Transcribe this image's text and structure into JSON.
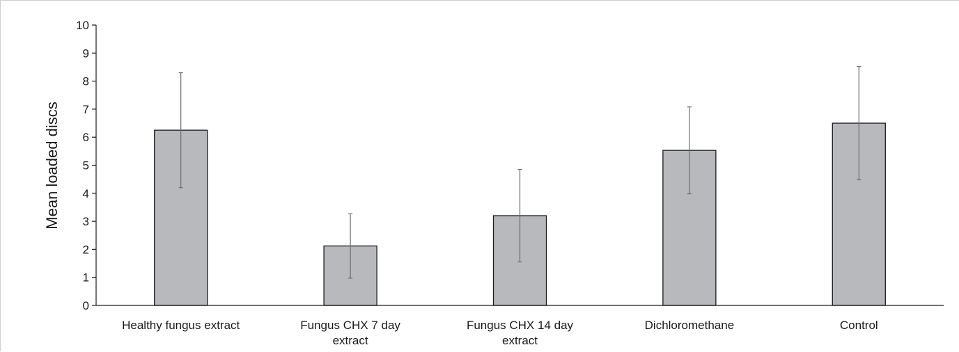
{
  "chart_data": {
    "type": "bar",
    "title": "",
    "xlabel": "",
    "ylabel": "Mean loaded discs",
    "ylim": [
      0,
      10
    ],
    "yticks": [
      0,
      1,
      2,
      3,
      4,
      5,
      6,
      7,
      8,
      9,
      10
    ],
    "grid": false,
    "legend": "none",
    "categories": [
      [
        "Healthy fungus extract"
      ],
      [
        "Fungus CHX 7 day",
        "extract"
      ],
      [
        "Fungus CHX 14 day",
        "extract"
      ],
      [
        "Dichloromethane"
      ],
      [
        "Control"
      ]
    ],
    "series": [
      {
        "values": [
          6.25,
          2.12,
          3.2,
          5.53,
          6.5
        ],
        "error_bars": [
          2.05,
          1.15,
          1.65,
          1.55,
          2.02
        ],
        "color": "#b8b9bd",
        "edge_color": "#1a1a1a"
      }
    ]
  }
}
